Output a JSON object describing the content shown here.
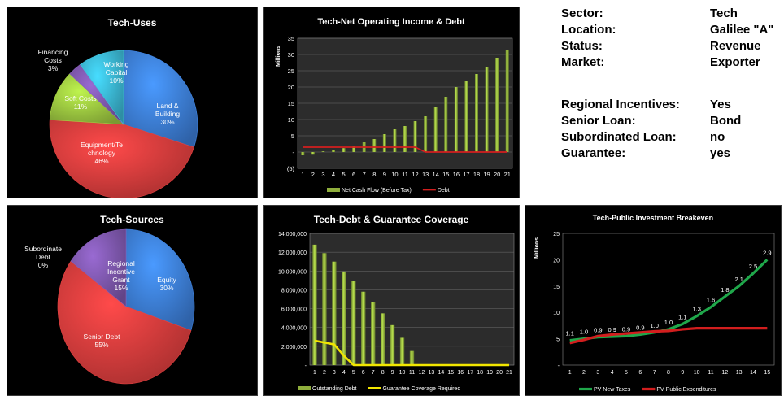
{
  "info": {
    "rows": [
      {
        "label": "Sector:",
        "value": "Tech"
      },
      {
        "label": "Location:",
        "value": "Galilee \"A\""
      },
      {
        "label": "Status:",
        "value": "Revenue"
      },
      {
        "label": "Market:",
        "value": "Exporter"
      },
      {
        "label": "Regional Incentives:",
        "value": "Yes"
      },
      {
        "label": "Senior Loan:",
        "value": "Bond"
      },
      {
        "label": "Subordinated Loan:",
        "value": "no"
      },
      {
        "label": "Guarantee:",
        "value": "yes"
      }
    ]
  },
  "chart_data": [
    {
      "id": "uses",
      "type": "pie",
      "title": "Tech-Uses",
      "slices": [
        {
          "label_lines": [
            "Land &",
            "Building"
          ],
          "pct": "30%",
          "value": 30,
          "color": "#3b7bd2"
        },
        {
          "label_lines": [
            "Equipment/Te",
            "chnology"
          ],
          "pct": "46%",
          "value": 46,
          "color": "#d23b3b"
        },
        {
          "label_lines": [
            "Soft Costs"
          ],
          "pct": "11%",
          "value": 11,
          "color": "#98c23e"
        },
        {
          "label_lines": [
            "Financing",
            "Costs"
          ],
          "pct": "3%",
          "value": 3,
          "color": "#7a55a8"
        },
        {
          "label_lines": [
            "Working",
            "Capital"
          ],
          "pct": "10%",
          "value": 10,
          "color": "#39b1cc"
        }
      ]
    },
    {
      "id": "noi",
      "type": "bar",
      "title": "Tech-Net Operating Income & Debt",
      "ylabel": "Millions",
      "ylim": [
        -5,
        35
      ],
      "yticks": [
        "(5)",
        "-",
        "5",
        "10",
        "15",
        "20",
        "25",
        "30",
        "35"
      ],
      "ytick_values": [
        -5,
        0,
        5,
        10,
        15,
        20,
        25,
        30,
        35
      ],
      "categories": [
        "1",
        "2",
        "3",
        "4",
        "5",
        "6",
        "7",
        "8",
        "9",
        "10",
        "11",
        "12",
        "13",
        "14",
        "15",
        "16",
        "17",
        "18",
        "19",
        "20",
        "21"
      ],
      "series": [
        {
          "name": "Net Cash Flow (Before Tax)",
          "type": "bar",
          "color": "#8fae3c",
          "values": [
            -1,
            -0.8,
            0.2,
            0.5,
            1.2,
            2,
            3,
            4,
            5.5,
            7,
            8,
            9.5,
            11,
            14,
            17,
            20,
            22,
            24,
            26,
            29,
            31.5
          ]
        },
        {
          "name": "Debt",
          "type": "line",
          "color": "#d21e1e",
          "values": [
            1.5,
            1.5,
            1.5,
            1.5,
            1.5,
            1.5,
            1.5,
            1.5,
            1.5,
            1.5,
            1.5,
            1.5,
            0,
            0,
            0,
            0,
            0,
            0,
            0,
            0,
            0
          ]
        }
      ]
    },
    {
      "id": "sources",
      "type": "pie",
      "title": "Tech-Sources",
      "slices": [
        {
          "label_lines": [
            "Equity"
          ],
          "pct": "30%",
          "value": 30,
          "color": "#3b7bd2"
        },
        {
          "label_lines": [
            "Senior Debt"
          ],
          "pct": "55%",
          "value": 55,
          "color": "#d23b3b"
        },
        {
          "label_lines": [
            "Regional",
            "Incentive",
            "Grant"
          ],
          "pct": "15%",
          "value": 15,
          "color": "#7a55a8"
        },
        {
          "label_lines": [
            "Subordinate",
            "Debt"
          ],
          "pct": "0%",
          "value": 0,
          "color": "#98c23e"
        }
      ]
    },
    {
      "id": "coverage",
      "type": "bar",
      "title": "Tech-Debt & Guarantee Coverage",
      "ylim": [
        0,
        14000000
      ],
      "yticks": [
        "-",
        "2,000,000",
        "4,000,000",
        "6,000,000",
        "8,000,000",
        "10,000,000",
        "12,000,000",
        "14,000,000"
      ],
      "ytick_values": [
        0,
        2000000,
        4000000,
        6000000,
        8000000,
        10000000,
        12000000,
        14000000
      ],
      "categories": [
        "1",
        "2",
        "3",
        "4",
        "5",
        "6",
        "7",
        "8",
        "9",
        "10",
        "11",
        "12",
        "13",
        "14",
        "15",
        "16",
        "17",
        "18",
        "19",
        "20",
        "21"
      ],
      "series": [
        {
          "name": "Outstanding Debt",
          "type": "bar",
          "color": "#8fae3c",
          "values": [
            12800000,
            11900000,
            11000000,
            9950000,
            8950000,
            7800000,
            6700000,
            5500000,
            4250000,
            2900000,
            1500000,
            0,
            0,
            0,
            0,
            0,
            0,
            0,
            0,
            0,
            0
          ]
        },
        {
          "name": "Guarantee Coverage Required",
          "type": "line",
          "color": "#f2e600",
          "values": [
            2600000,
            2400000,
            2200000,
            1000000,
            0,
            0,
            0,
            0,
            0,
            0,
            0,
            0,
            0,
            0,
            0,
            0,
            0,
            0,
            0,
            0,
            0
          ]
        }
      ]
    },
    {
      "id": "breakeven",
      "type": "line",
      "title": "Tech-Public Investment Breakeven",
      "ylabel": "Millions",
      "ylim": [
        0,
        25
      ],
      "yticks": [
        "-",
        "5",
        "10",
        "15",
        "20",
        "25"
      ],
      "ytick_values": [
        0,
        5,
        10,
        15,
        20,
        25
      ],
      "categories": [
        "1",
        "2",
        "3",
        "4",
        "5",
        "6",
        "7",
        "8",
        "9",
        "10",
        "11",
        "12",
        "13",
        "14",
        "15"
      ],
      "data_labels": [
        "1.1",
        "1.0",
        "0.9",
        "0.9",
        "0.9",
        "0.9",
        "1.0",
        "1.0",
        "1.1",
        "1.3",
        "1.6",
        "1.8",
        "2.1",
        "2.5",
        "2.9"
      ],
      "series": [
        {
          "name": "PV New Taxes",
          "type": "line",
          "color": "#1fa74a",
          "values": [
            4.7,
            5,
            5.3,
            5.4,
            5.5,
            5.8,
            6.2,
            6.8,
            7.8,
            9.3,
            11,
            13,
            15,
            17.4,
            20
          ]
        },
        {
          "name": "PV Public Expenditures",
          "type": "line",
          "color": "#d21e1e",
          "values": [
            4.2,
            4.8,
            5.5,
            5.8,
            6,
            6.2,
            6.4,
            6.5,
            6.8,
            7,
            7,
            7,
            7,
            7,
            7
          ]
        }
      ]
    }
  ]
}
